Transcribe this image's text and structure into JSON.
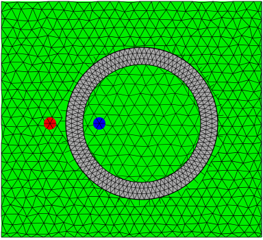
{
  "diagram": {
    "type": "triangulated-mesh",
    "colors": {
      "background": "#ffffff",
      "domain_fill": "#00ee00",
      "ring_fill": "#a9a9a9",
      "mesh_edge": "#000000",
      "marker_left": "#ee0000",
      "marker_right": "#0000ee"
    },
    "regions": [
      {
        "name": "outer-domain",
        "color": "#00ee00"
      },
      {
        "name": "annulus-ring",
        "color": "#a9a9a9"
      },
      {
        "name": "inner-disk",
        "color": "#00ee00"
      }
    ],
    "markers": [
      {
        "name": "red-marker",
        "color": "#ee0000"
      },
      {
        "name": "blue-marker",
        "color": "#0000ee"
      }
    ]
  }
}
